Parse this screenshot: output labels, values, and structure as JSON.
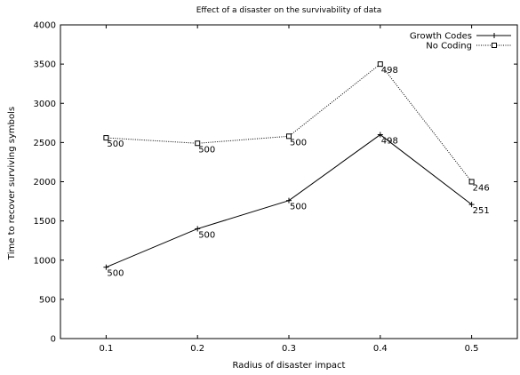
{
  "chart_data": {
    "type": "line",
    "title": "Effect of a disaster on the survivability of data",
    "xlabel": "Radius of disaster impact",
    "ylabel": "Time to recover surviving symbols",
    "x": [
      0.1,
      0.2,
      0.3,
      0.4,
      0.5
    ],
    "x_ticks": [
      "0.1",
      "0.2",
      "0.3",
      "0.4",
      "0.5"
    ],
    "xlim": [
      0.05,
      0.55
    ],
    "ylim": [
      0,
      4000
    ],
    "y_ticks": [
      "0",
      "500",
      "1000",
      "1500",
      "2000",
      "2500",
      "3000",
      "3500",
      "4000"
    ],
    "grid": false,
    "legend_position": "top-right",
    "series": [
      {
        "name": "Growth Codes",
        "values": [
          910,
          1400,
          1760,
          2600,
          1710
        ],
        "point_labels": [
          "500",
          "500",
          "500",
          "498",
          "251"
        ],
        "line_style": "solid",
        "marker": "plus"
      },
      {
        "name": "No Coding",
        "values": [
          2560,
          2490,
          2580,
          3500,
          2000
        ],
        "point_labels": [
          "500",
          "500",
          "500",
          "498",
          "246"
        ],
        "line_style": "dotted",
        "marker": "square"
      }
    ]
  }
}
